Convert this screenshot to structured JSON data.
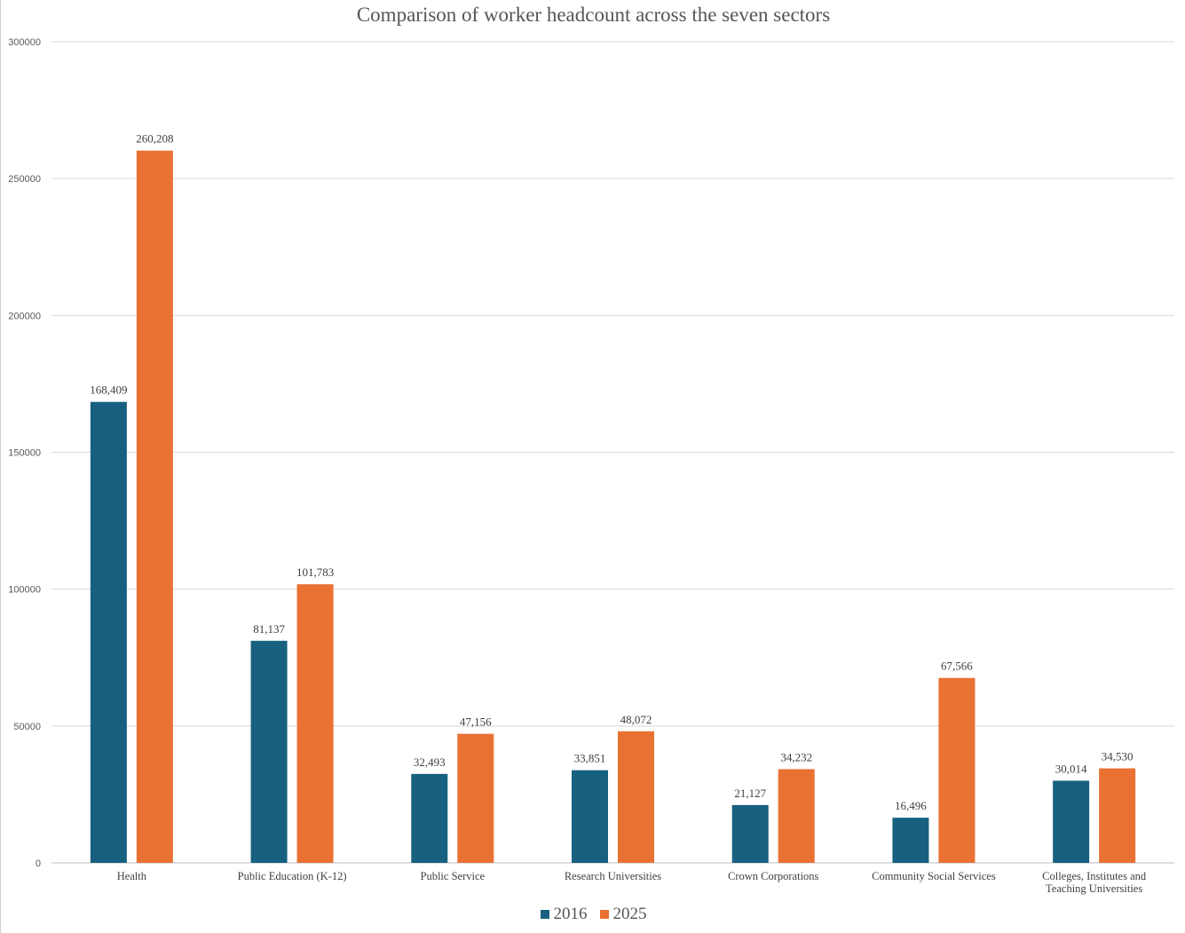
{
  "chart_data": {
    "type": "bar",
    "title": "Comparison of worker headcount across the seven sectors",
    "xlabel": "",
    "ylabel": "",
    "ylim": [
      0,
      300000
    ],
    "yticks": [
      0,
      50000,
      100000,
      150000,
      200000,
      250000,
      300000
    ],
    "ytick_labels": [
      "0",
      "50000",
      "100000",
      "150000",
      "200000",
      "250000",
      "300000"
    ],
    "grid": true,
    "legend_position": "bottom",
    "categories": [
      "Health",
      "Public Education (K-12)",
      "Public Service",
      "Research Universities",
      "Crown Corporations",
      "Community Social Services",
      "Colleges, Institutes and Teaching Universities"
    ],
    "series": [
      {
        "name": "2016",
        "color": "#17607f",
        "values": [
          168409,
          81137,
          32493,
          33851,
          21127,
          16496,
          30014
        ],
        "labels": [
          "168,409",
          "81,137",
          "32,493",
          "33,851",
          "21,127",
          "16,496",
          "30,014"
        ]
      },
      {
        "name": "2025",
        "color": "#e97132",
        "values": [
          260208,
          101783,
          47156,
          48072,
          34232,
          67566,
          34530
        ],
        "labels": [
          "260,208",
          "101,783",
          "47,156",
          "48,072",
          "34,232",
          "67,566",
          "34,530"
        ]
      }
    ]
  }
}
